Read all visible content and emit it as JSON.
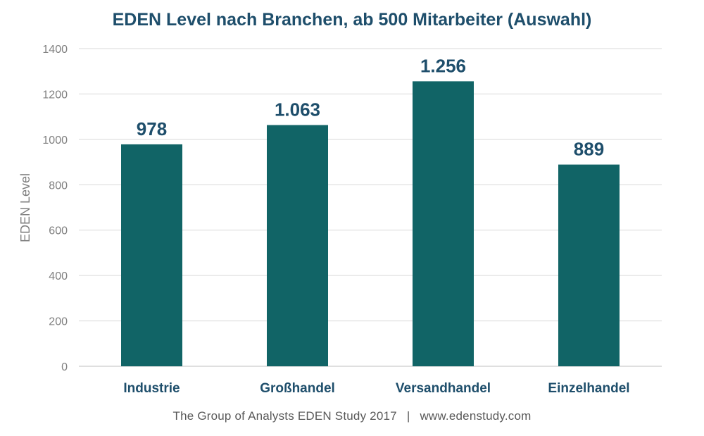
{
  "chart_data": {
    "type": "bar",
    "title": "EDEN Level nach Branchen, ab 500 Mitarbeiter (Auswahl)",
    "ylabel": "EDEN Level",
    "xlabel": "",
    "categories": [
      "Industrie",
      "Großhandel",
      "Versandhandel",
      "Einzelhandel"
    ],
    "values": [
      978,
      1063,
      1256,
      889
    ],
    "data_labels": [
      "978",
      "1.063",
      "1.256",
      "889"
    ],
    "ylim": [
      0,
      1400
    ],
    "yticks": [
      0,
      200,
      400,
      600,
      800,
      1000,
      1200,
      1400
    ],
    "grid": true,
    "legend": "none",
    "bar_color": "#116466"
  },
  "footer": {
    "source": "The Group of Analysts EDEN Study 2017",
    "separator": "|",
    "url": "www.edenstudy.com"
  }
}
